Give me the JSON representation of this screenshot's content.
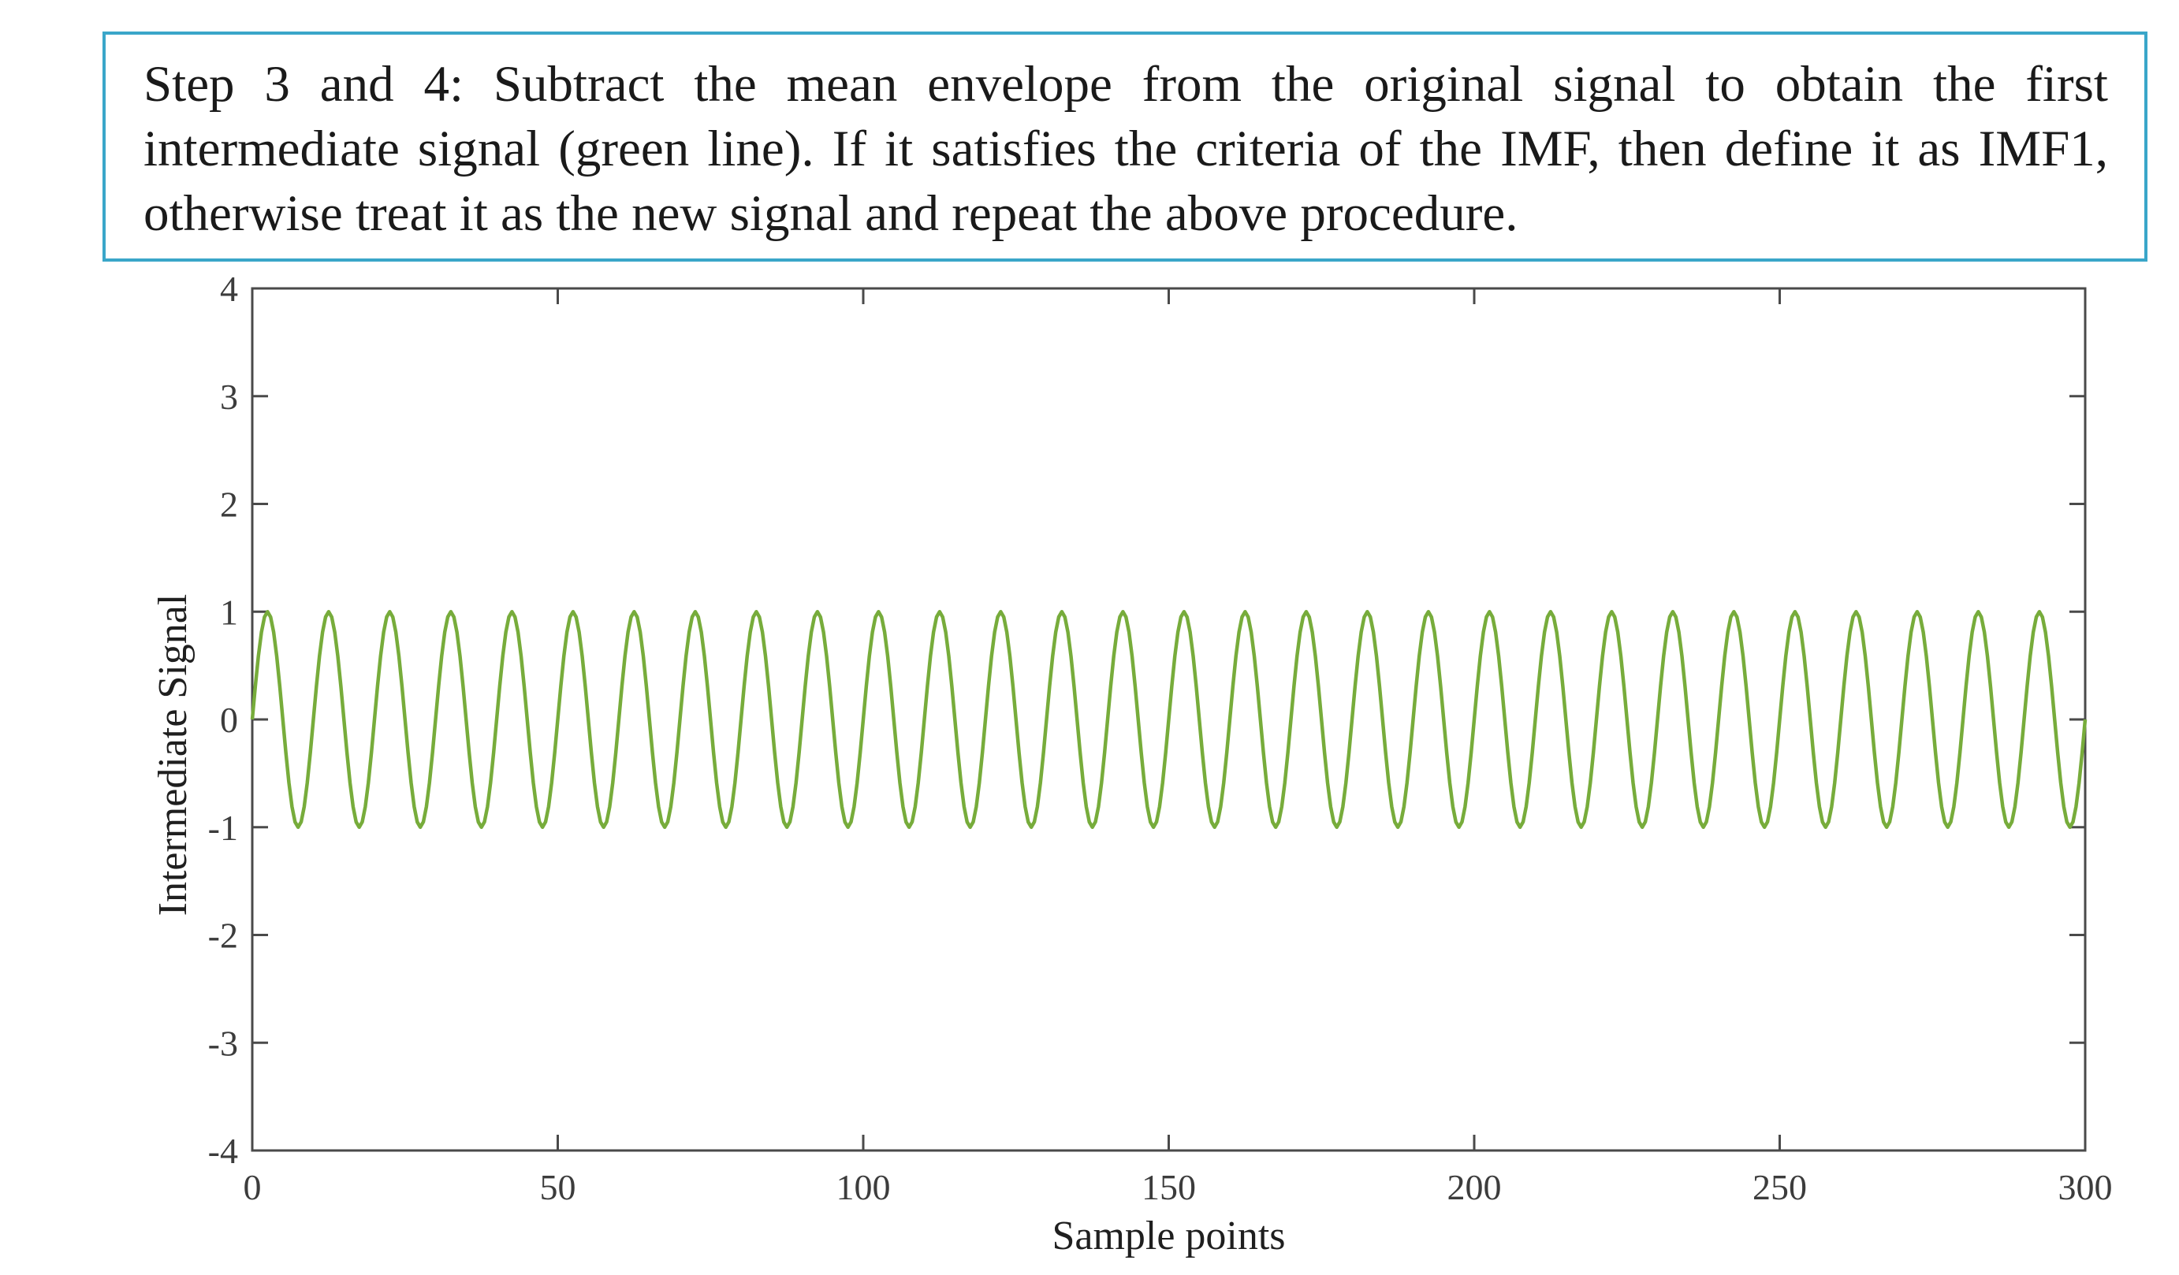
{
  "caption": {
    "text": "Step 3 and 4: Subtract the mean envelope from the original signal to obtain the first intermediate signal (green line). If it satisfies the criteria of the IMF, then define it as IMF1, otherwise treat it as the new signal and repeat the above procedure."
  },
  "colors": {
    "caption_border": "#3aa6c9",
    "series": "#77ac3b",
    "axis": "#4a4a4a"
  },
  "chart_data": {
    "type": "line",
    "title": "",
    "xlabel": "Sample points",
    "ylabel": "Intermediate Signal",
    "xlim": [
      0,
      300
    ],
    "ylim": [
      -4,
      4
    ],
    "x_ticks": [
      0,
      50,
      100,
      150,
      200,
      250,
      300
    ],
    "x_tick_labels": [
      "0",
      "50",
      "100",
      "150",
      "200",
      "250",
      "300"
    ],
    "y_ticks": [
      -4,
      -3,
      -2,
      -1,
      0,
      1,
      2,
      3,
      4
    ],
    "y_tick_labels": [
      "-4",
      "-3",
      "-2",
      "-1",
      "0",
      "1",
      "2",
      "3",
      "4"
    ],
    "grid": false,
    "legend": "none",
    "series": [
      {
        "function": "sine",
        "amplitude": 1,
        "period": 10,
        "offset": 0,
        "x_start": 0,
        "x_end": 300,
        "sample_step": 0.5
      }
    ]
  }
}
